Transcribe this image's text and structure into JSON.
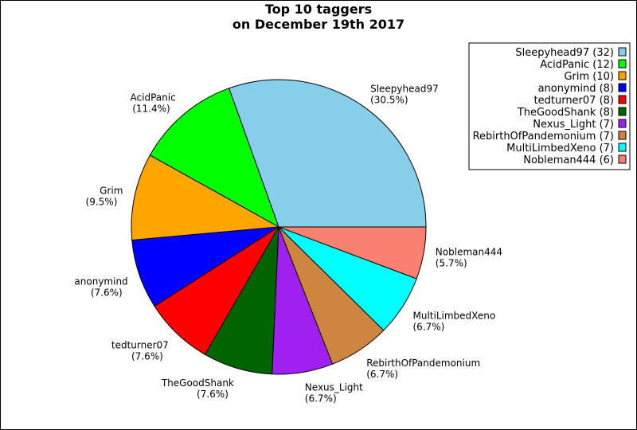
{
  "chart_data": {
    "type": "pie",
    "title_lines": [
      "Top 10 taggers",
      "on December 19th 2017"
    ],
    "legend_position": "top-right",
    "slices": [
      {
        "label": "Sleepyhead97",
        "value": 32,
        "pct": "30.5%",
        "color": "#87ceeb",
        "legend": "Sleepyhead97 (32)"
      },
      {
        "label": "AcidPanic",
        "value": 12,
        "pct": "11.4%",
        "color": "#00ff00",
        "legend": "AcidPanic (12)"
      },
      {
        "label": "Grim",
        "value": 10,
        "pct": "9.5%",
        "color": "#ffa500",
        "legend": "Grim (10)"
      },
      {
        "label": "anonymind",
        "value": 8,
        "pct": "7.6%",
        "color": "#0000ff",
        "legend": "anonymind (8)"
      },
      {
        "label": "tedturner07",
        "value": 8,
        "pct": "7.6%",
        "color": "#ff0000",
        "legend": "tedturner07 (8)"
      },
      {
        "label": "TheGoodShank",
        "value": 8,
        "pct": "7.6%",
        "color": "#006400",
        "legend": "TheGoodShank (8)"
      },
      {
        "label": "Nexus_Light",
        "value": 7,
        "pct": "6.7%",
        "color": "#a020f0",
        "legend": "Nexus_Light (7)"
      },
      {
        "label": "RebirthOfPandemonium",
        "value": 7,
        "pct": "6.7%",
        "color": "#cd853f",
        "legend": "RebirthOfPandemonium (7)"
      },
      {
        "label": "MultiLimbedXeno",
        "value": 7,
        "pct": "6.7%",
        "color": "#00ffff",
        "legend": "MultiLimbedXeno (7)"
      },
      {
        "label": "Nobleman444",
        "value": 6,
        "pct": "5.7%",
        "color": "#fa8072",
        "legend": "Nobleman444 (6)"
      }
    ]
  }
}
